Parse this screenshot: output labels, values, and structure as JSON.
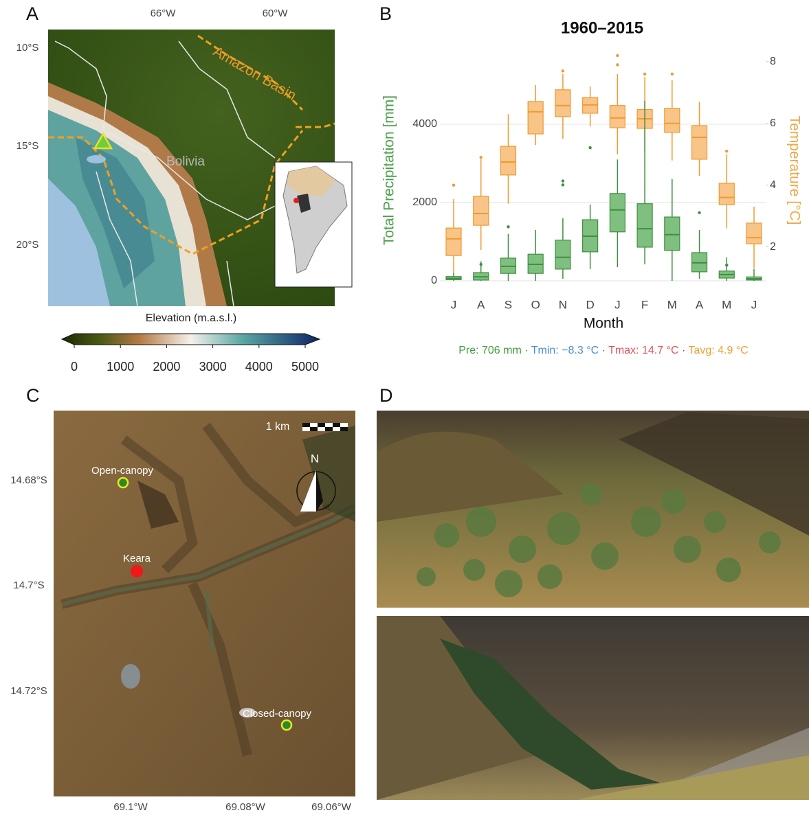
{
  "panel_labels": [
    "A",
    "B",
    "C",
    "D"
  ],
  "map_a": {
    "lon_labels": [
      "66°W",
      "60°W"
    ],
    "lat_labels": [
      "10°S",
      "15°S",
      "20°S"
    ],
    "region_label": "Amazon Basin",
    "country_label": "Bolivia",
    "colorbar": {
      "label": "Elevation (m.a.s.l.)",
      "ticks": [
        0,
        1000,
        2000,
        3000,
        4000,
        5000
      ]
    }
  },
  "chart_data": {
    "type": "box",
    "title": "1960–2015",
    "x_label": "Month",
    "y_label": "Total Precipitation [mm]",
    "y2_label": "Temperature [°C]",
    "categories": [
      "J",
      "A",
      "S",
      "O",
      "N",
      "D",
      "J",
      "F",
      "M",
      "A",
      "M",
      "J"
    ],
    "ylim": [
      0,
      5770
    ],
    "yticks": [
      0,
      2000,
      4000
    ],
    "y2lim": [
      0.9,
      8.22
    ],
    "y2ticks": [
      2,
      4,
      6,
      8
    ],
    "grid": true,
    "y_label_color": "#4aa04a",
    "y2_label_color": "#f0a848",
    "series": [
      {
        "color": "#3f8f3f",
        "fill": "#7fbf7f",
        "min": [
          0,
          0,
          0,
          0,
          50,
          300,
          350,
          420,
          0,
          50,
          0,
          0
        ],
        "q1": [
          30,
          20,
          190,
          190,
          300,
          740,
          1250,
          860,
          780,
          230,
          70,
          20
        ],
        "median": [
          60,
          100,
          370,
          420,
          600,
          1140,
          1810,
          1330,
          1180,
          460,
          160,
          50
        ],
        "q3": [
          110,
          210,
          580,
          680,
          1040,
          1560,
          2230,
          1970,
          1630,
          720,
          250,
          100
        ],
        "max": [
          200,
          500,
          1200,
          1300,
          1600,
          1950,
          3100,
          4600,
          2600,
          1300,
          600,
          300
        ],
        "outliers": [
          [],
          [
            420
          ],
          [
            1380
          ],
          [],
          [
            2450,
            2550
          ],
          [
            3400
          ],
          [],
          [],
          [],
          [
            1740
          ],
          [
            400
          ],
          []
        ]
      },
      {
        "axis": "y2",
        "color": "#f09a30",
        "fill": "#f8c488",
        "min": [
          1.14,
          1.9,
          3.4,
          5.3,
          5.5,
          5.9,
          5.0,
          5.1,
          4.8,
          4.3,
          2.6,
          1.3
        ],
        "q1": [
          1.72,
          2.7,
          4.33,
          5.66,
          6.22,
          6.33,
          5.86,
          5.84,
          5.71,
          4.84,
          3.37,
          2.1
        ],
        "median": [
          2.26,
          3.08,
          4.75,
          6.38,
          6.58,
          6.6,
          6.18,
          6.15,
          6.0,
          5.55,
          3.6,
          2.3
        ],
        "q3": [
          2.61,
          3.64,
          5.26,
          6.71,
          7.09,
          6.84,
          6.58,
          6.45,
          6.49,
          5.93,
          4.06,
          2.77
        ],
        "max": [
          3.55,
          4.84,
          6.3,
          7.24,
          7.6,
          7.2,
          7.6,
          7.5,
          7.4,
          6.7,
          5.0,
          3.3
        ],
        "outliers": [
          [
            4.0
          ],
          [
            4.9
          ],
          [],
          [],
          [
            7.7
          ],
          [],
          [
            8.2,
            7.9
          ],
          [
            7.6
          ],
          [
            7.6
          ],
          [],
          [
            5.1
          ],
          []
        ]
      }
    ]
  },
  "summary": {
    "separator": "·",
    "items": [
      {
        "text": "Pre: 706 mm",
        "color": "#3f9e3f"
      },
      {
        "text": "Tmin: −8.3 °C",
        "color": "#4a8fc8"
      },
      {
        "text": "Tmax: 14.7 °C",
        "color": "#e0555a"
      },
      {
        "text": "Tavg: 4.9 °C",
        "color": "#f0a030"
      }
    ]
  },
  "map_c": {
    "scale_label": "1 km",
    "north_label": "N",
    "sites": [
      "Open-canopy",
      "Keara",
      "Closed-canopy"
    ],
    "lat_labels": [
      "14.68°S",
      "14.7°S",
      "14.72°S"
    ],
    "lon_labels": [
      "69.1°W",
      "69.08°W",
      "69.06°W"
    ]
  }
}
